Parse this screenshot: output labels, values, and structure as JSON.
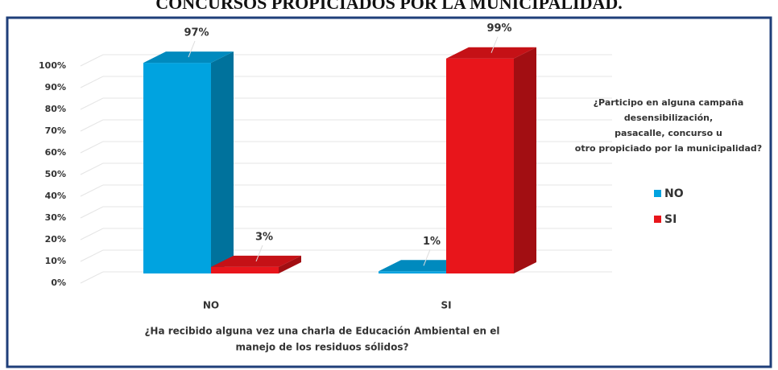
{
  "chart_data": {
    "type": "bar3d",
    "title": "CONCURSOS PROPICIADOS POR LA MUNICIPALIDAD.",
    "categories": [
      "NO",
      "SI"
    ],
    "series": [
      {
        "name": "NO",
        "color": "#00a3e0",
        "values": [
          97,
          1
        ],
        "value_labels": [
          "97%",
          "1%"
        ]
      },
      {
        "name": "SI",
        "color": "#e8151b",
        "values": [
          3,
          99
        ],
        "value_labels": [
          "3%",
          "99%"
        ]
      }
    ],
    "ylim": [
      0,
      100
    ],
    "yticks": [
      {
        "value": 0,
        "label": "0%"
      },
      {
        "value": 10,
        "label": "10%"
      },
      {
        "value": 20,
        "label": "20%"
      },
      {
        "value": 30,
        "label": "30%"
      },
      {
        "value": 40,
        "label": "40%"
      },
      {
        "value": 50,
        "label": "50%"
      },
      {
        "value": 60,
        "label": "60%"
      },
      {
        "value": 70,
        "label": "70%"
      },
      {
        "value": 80,
        "label": "80%"
      },
      {
        "value": 90,
        "label": "90%"
      },
      {
        "value": 100,
        "label": "100%"
      }
    ],
    "grid": true,
    "legend_title": [
      "¿Participo en alguna campaña",
      "desensibilización,",
      "pasacalle, concurso u",
      "otro propiciado por la municipalidad?"
    ],
    "xlabel": [
      "¿Ha recibido alguna vez una charla de Educación Ambiental en el",
      "manejo de los residuos sólidos?"
    ]
  }
}
